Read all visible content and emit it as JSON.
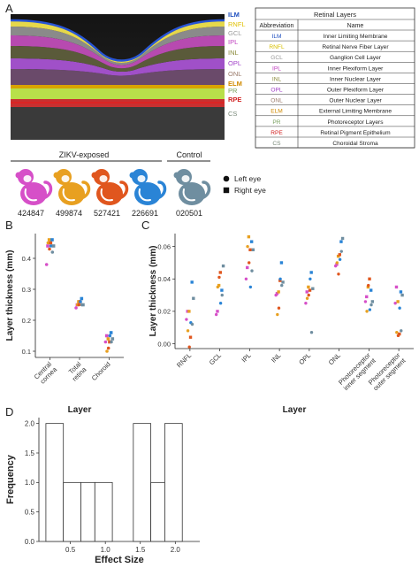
{
  "panels": {
    "a": "A",
    "b": "B",
    "c": "C",
    "d": "D"
  },
  "oct": {
    "layer_labels": [
      {
        "text": "ILM",
        "color": "#1f4fbf"
      },
      {
        "text": "RNFL",
        "color": "#e0c000"
      },
      {
        "text": "GCL",
        "color": "#9a9a9a"
      },
      {
        "text": "IPL",
        "color": "#c040c0"
      },
      {
        "text": "INL",
        "color": "#8a8a3a"
      },
      {
        "text": "OPL",
        "color": "#a040c8"
      },
      {
        "text": "ONL",
        "color": "#9a7a6a"
      },
      {
        "text": "ELM",
        "color": "#d08a00"
      },
      {
        "text": "PR",
        "color": "#7aa060"
      },
      {
        "text": "RPE",
        "color": "#d02020"
      },
      {
        "text": "CS",
        "color": "#7a8a7a"
      }
    ]
  },
  "legend_table": {
    "title": "Retinal Layers",
    "col_abbr": "Abbreviation",
    "col_name": "Name",
    "rows": [
      {
        "abbr": "ILM",
        "name": "Inner Limiting Membrane",
        "color": "#1f4fbf"
      },
      {
        "abbr": "RNFL",
        "name": "Retinal Nerve Fiber Layer",
        "color": "#d8c000"
      },
      {
        "abbr": "GCL",
        "name": "Ganglion Cell Layer",
        "color": "#9a9a9a"
      },
      {
        "abbr": "IPL",
        "name": "Inner Plexiform Layer",
        "color": "#c040c0"
      },
      {
        "abbr": "INL",
        "name": "Inner Nuclear Layer",
        "color": "#8a8a3a"
      },
      {
        "abbr": "OPL",
        "name": "Outer Plexiform Layer",
        "color": "#a040c8"
      },
      {
        "abbr": "ONL",
        "name": "Outer Nuclear Layer",
        "color": "#9a7a6a"
      },
      {
        "abbr": "ELM",
        "name": "External Limiting Membrane",
        "color": "#d08a00"
      },
      {
        "abbr": "PR",
        "name": "Photoreceptor Layers",
        "color": "#7aa060"
      },
      {
        "abbr": "RPE",
        "name": "Retinal Pigment Epithelium",
        "color": "#d02020"
      },
      {
        "abbr": "CS",
        "name": "Choroidal Stroma",
        "color": "#7a8a7a"
      }
    ]
  },
  "animals": {
    "group_exposed": "ZIKV-exposed",
    "group_control": "Control",
    "items": [
      {
        "id": "424847",
        "color": "#d64fc8",
        "group": "exposed"
      },
      {
        "id": "499874",
        "color": "#e8a020",
        "group": "exposed"
      },
      {
        "id": "527421",
        "color": "#e0561e",
        "group": "exposed"
      },
      {
        "id": "226691",
        "color": "#2a84d6",
        "group": "exposed"
      },
      {
        "id": "020501",
        "color": "#6f8ea0",
        "group": "control"
      }
    ],
    "eye_legend": [
      {
        "label": "Left eye",
        "shape": "circle"
      },
      {
        "label": "Right eye",
        "shape": "square"
      }
    ]
  },
  "chart_data": [
    {
      "panel": "B",
      "type": "scatter",
      "xlabel": "Layer",
      "ylabel": "Layer thickness (mm)",
      "categories": [
        "Central cornea",
        "Total retina",
        "Choroid"
      ],
      "yticks": [
        "0.1",
        "0.2",
        "0.3",
        "0.4"
      ],
      "ylim": [
        0.08,
        0.48
      ],
      "grid": false,
      "series": [
        {
          "animal": "424847",
          "color": "#d64fc8",
          "values": {
            "Central cornea": [
              0.38,
              0.44
            ],
            "Total retina": [
              0.24,
              0.25
            ],
            "Choroid": [
              0.13,
              0.15
            ]
          }
        },
        {
          "animal": "499874",
          "color": "#e8a020",
          "values": {
            "Central cornea": [
              0.45,
              0.46
            ],
            "Total retina": [
              0.25,
              0.26
            ],
            "Choroid": [
              0.1,
              0.14
            ]
          }
        },
        {
          "animal": "527421",
          "color": "#e0561e",
          "values": {
            "Central cornea": [
              0.43,
              0.45
            ],
            "Total retina": [
              0.25,
              0.26
            ],
            "Choroid": [
              0.11,
              0.13
            ]
          }
        },
        {
          "animal": "226691",
          "color": "#2a84d6",
          "values": {
            "Central cornea": [
              0.44,
              0.46
            ],
            "Total retina": [
              0.26,
              0.27
            ],
            "Choroid": [
              0.15,
              0.16
            ]
          }
        },
        {
          "animal": "020501",
          "color": "#6f8ea0",
          "values": {
            "Central cornea": [
              0.42,
              0.44
            ],
            "Total retina": [
              0.25,
              0.25
            ],
            "Choroid": [
              0.13,
              0.14
            ]
          }
        }
      ]
    },
    {
      "panel": "C",
      "type": "scatter",
      "xlabel": "Layer",
      "ylabel": "Layer thickness (mm)",
      "categories": [
        "RNFL",
        "GCL",
        "IPL",
        "INL",
        "OPL",
        "ONL",
        "Photoreceptor inner segment",
        "Photoreceptor outer segment"
      ],
      "yticks": [
        "0.00",
        "0.02",
        "0.04",
        "0.06"
      ],
      "ylim": [
        -0.003,
        0.068
      ],
      "grid": false,
      "series": [
        {
          "animal": "424847",
          "color": "#d64fc8",
          "values": {
            "RNFL": [
              0.015,
              0.02
            ],
            "GCL": [
              0.018,
              0.02
            ],
            "IPL": [
              0.04,
              0.047
            ],
            "INL": [
              0.03,
              0.031
            ],
            "OPL": [
              0.025,
              0.032
            ],
            "ONL": [
              0.048,
              0.049
            ],
            "Photoreceptor inner segment": [
              0.026,
              0.029
            ],
            "Photoreceptor outer segment": [
              0.025,
              0.035
            ]
          }
        },
        {
          "animal": "499874",
          "color": "#e8a020",
          "values": {
            "RNFL": [
              0.008,
              0.02
            ],
            "GCL": [
              0.035,
              0.036
            ],
            "IPL": [
              0.06,
              0.066
            ],
            "INL": [
              0.018,
              0.032
            ],
            "OPL": [
              0.028,
              0.035
            ],
            "ONL": [
              0.05,
              0.054
            ],
            "Photoreceptor inner segment": [
              0.02,
              0.035
            ],
            "Photoreceptor outer segment": [
              0.007,
              0.026
            ]
          }
        },
        {
          "animal": "527421",
          "color": "#e0561e",
          "values": {
            "RNFL": [
              -0.002,
              0.004
            ],
            "GCL": [
              0.041,
              0.044
            ],
            "IPL": [
              0.05,
              0.058
            ],
            "INL": [
              0.022,
              0.039
            ],
            "OPL": [
              0.03,
              0.033
            ],
            "ONL": [
              0.043,
              0.055
            ],
            "Photoreceptor inner segment": [
              0.036,
              0.04
            ],
            "Photoreceptor outer segment": [
              0.005,
              0.006
            ]
          }
        },
        {
          "animal": "226691",
          "color": "#2a84d6",
          "values": {
            "RNFL": [
              0.013,
              0.038
            ],
            "GCL": [
              0.025,
              0.033
            ],
            "IPL": [
              0.035,
              0.063
            ],
            "INL": [
              0.04,
              0.05
            ],
            "OPL": [
              0.04,
              0.044
            ],
            "ONL": [
              0.052,
              0.063
            ],
            "Photoreceptor inner segment": [
              0.021,
              0.033
            ],
            "Photoreceptor outer segment": [
              0.022,
              0.032
            ]
          }
        },
        {
          "animal": "020501",
          "color": "#6f8ea0",
          "values": {
            "RNFL": [
              0.012,
              0.028
            ],
            "GCL": [
              0.03,
              0.048
            ],
            "IPL": [
              0.045,
              0.058
            ],
            "INL": [
              0.036,
              0.038
            ],
            "OPL": [
              0.007,
              0.034
            ],
            "ONL": [
              0.057,
              0.065
            ],
            "Photoreceptor inner segment": [
              0.024,
              0.026
            ],
            "Photoreceptor outer segment": [
              0.008,
              0.03
            ]
          }
        }
      ]
    },
    {
      "panel": "D",
      "type": "bar",
      "subtype": "histogram",
      "xlabel": "Effect Size",
      "ylabel": "Frequency",
      "xticks": [
        "0.5",
        "1.0",
        "1.5",
        "2.0"
      ],
      "yticks": [
        "0.0",
        "0.5",
        "1.0",
        "1.5",
        "2.0"
      ],
      "xlim": [
        0.05,
        2.35
      ],
      "ylim": [
        0,
        2.1
      ],
      "bins": [
        {
          "start": 0.15,
          "end": 0.4,
          "count": 2
        },
        {
          "start": 0.4,
          "end": 0.65,
          "count": 1
        },
        {
          "start": 0.65,
          "end": 0.85,
          "count": 1
        },
        {
          "start": 0.85,
          "end": 1.1,
          "count": 1
        },
        {
          "start": 1.1,
          "end": 1.4,
          "count": 0
        },
        {
          "start": 1.4,
          "end": 1.65,
          "count": 2
        },
        {
          "start": 1.65,
          "end": 1.85,
          "count": 1
        },
        {
          "start": 1.85,
          "end": 2.1,
          "count": 2
        }
      ]
    }
  ]
}
